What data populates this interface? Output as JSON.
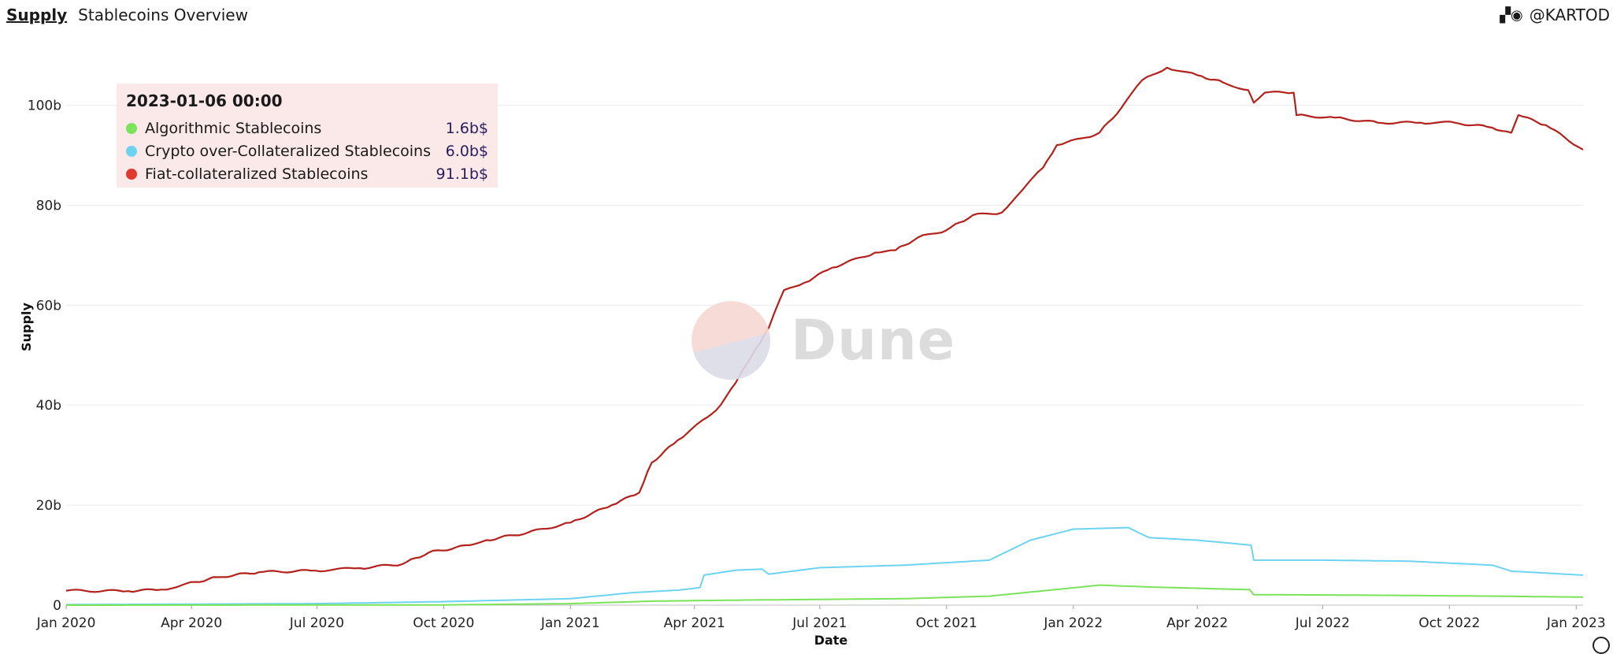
{
  "header": {
    "link_label": "Supply",
    "subtitle": "Stablecoins Overview"
  },
  "author": {
    "icon": "user-avatar-icon",
    "handle": "@KARTOD"
  },
  "watermark": {
    "text": "Dune"
  },
  "tooltip": {
    "date": "2023-01-06 00:00",
    "rows": [
      {
        "name": "Algorithmic Stablecoins",
        "value": "1.6b$",
        "color": "#7be35a"
      },
      {
        "name": "Crypto over-Collateralized Stablecoins",
        "value": "6.0b$",
        "color": "#6ed3f0"
      },
      {
        "name": "Fiat-collateralized Stablecoins",
        "value": "91.1b$",
        "color": "#e03a30"
      }
    ]
  },
  "chart_data": {
    "type": "line",
    "xlabel": "Date",
    "ylabel": "Supply",
    "x_tick_labels": [
      "Jan 2020",
      "Apr 2020",
      "Jul 2020",
      "Oct 2020",
      "Jan 2021",
      "Apr 2021",
      "Jul 2021",
      "Oct 2021",
      "Jan 2022",
      "Apr 2022",
      "Jul 2022",
      "Oct 2022",
      "Jan 2023"
    ],
    "y_ticks": [
      0,
      20,
      40,
      60,
      80,
      100
    ],
    "y_tick_labels": [
      "0",
      "20b",
      "40b",
      "60b",
      "80b",
      "100b"
    ],
    "ylim": [
      0,
      110
    ],
    "xlim": [
      "2020-01-01",
      "2023-01-06"
    ],
    "grid": true,
    "series": [
      {
        "name": "Fiat-collateralized Stablecoins",
        "color": "#b2211b",
        "points": [
          [
            "2020-01-01",
            2.9
          ],
          [
            "2020-02-15",
            2.8
          ],
          [
            "2020-03-10",
            3.1
          ],
          [
            "2020-03-25",
            4.0
          ],
          [
            "2020-04-20",
            5.6
          ],
          [
            "2020-05-20",
            6.6
          ],
          [
            "2020-06-30",
            6.9
          ],
          [
            "2020-08-01",
            7.4
          ],
          [
            "2020-09-01",
            8.2
          ],
          [
            "2020-09-20",
            10.5
          ],
          [
            "2020-10-20",
            12.0
          ],
          [
            "2020-11-01",
            13.0
          ],
          [
            "2020-12-01",
            14.5
          ],
          [
            "2021-01-01",
            16.5
          ],
          [
            "2021-01-31",
            20.0
          ],
          [
            "2021-02-20",
            22.5
          ],
          [
            "2021-03-01",
            28.5
          ],
          [
            "2021-03-20",
            33.0
          ],
          [
            "2021-04-10",
            37.5
          ],
          [
            "2021-04-20",
            40.0
          ],
          [
            "2021-05-01",
            44.5
          ],
          [
            "2021-05-15",
            51.0
          ],
          [
            "2021-05-25",
            55.5
          ],
          [
            "2021-06-05",
            63.0
          ],
          [
            "2021-06-20",
            64.5
          ],
          [
            "2021-07-10",
            67.5
          ],
          [
            "2021-08-10",
            70.5
          ],
          [
            "2021-08-25",
            71.0
          ],
          [
            "2021-09-10",
            73.5
          ],
          [
            "2021-10-01",
            75.0
          ],
          [
            "2021-10-20",
            78.0
          ],
          [
            "2021-11-10",
            78.5
          ],
          [
            "2021-11-25",
            83.0
          ],
          [
            "2021-12-10",
            87.5
          ],
          [
            "2021-12-20",
            92.0
          ],
          [
            "2022-01-10",
            93.5
          ],
          [
            "2022-01-20",
            94.5
          ],
          [
            "2022-02-05",
            99.5
          ],
          [
            "2022-02-20",
            105.0
          ],
          [
            "2022-03-10",
            107.5
          ],
          [
            "2022-04-01",
            106.0
          ],
          [
            "2022-04-20",
            104.5
          ],
          [
            "2022-05-08",
            103.0
          ],
          [
            "2022-05-12",
            100.5
          ],
          [
            "2022-05-20",
            102.5
          ],
          [
            "2022-06-10",
            102.5
          ],
          [
            "2022-06-12",
            98.0
          ],
          [
            "2022-07-10",
            97.5
          ],
          [
            "2022-08-10",
            96.5
          ],
          [
            "2022-09-10",
            96.5
          ],
          [
            "2022-10-05",
            96.5
          ],
          [
            "2022-11-01",
            95.5
          ],
          [
            "2022-11-15",
            94.5
          ],
          [
            "2022-11-20",
            98.0
          ],
          [
            "2022-12-10",
            96.0
          ],
          [
            "2023-01-06",
            91.1
          ]
        ]
      },
      {
        "name": "Crypto over-Collateralized Stablecoins",
        "color": "#6ed3f0",
        "points": [
          [
            "2020-01-01",
            0.1
          ],
          [
            "2020-07-01",
            0.3
          ],
          [
            "2020-10-01",
            0.7
          ],
          [
            "2021-01-01",
            1.3
          ],
          [
            "2021-02-15",
            2.5
          ],
          [
            "2021-03-20",
            3.0
          ],
          [
            "2021-04-05",
            3.5
          ],
          [
            "2021-04-08",
            6.0
          ],
          [
            "2021-05-01",
            7.0
          ],
          [
            "2021-05-20",
            7.2
          ],
          [
            "2021-05-25",
            6.2
          ],
          [
            "2021-07-01",
            7.5
          ],
          [
            "2021-09-01",
            8.0
          ],
          [
            "2021-11-01",
            9.0
          ],
          [
            "2021-12-01",
            13.0
          ],
          [
            "2022-01-01",
            15.2
          ],
          [
            "2022-02-10",
            15.5
          ],
          [
            "2022-02-25",
            13.5
          ],
          [
            "2022-04-01",
            13.0
          ],
          [
            "2022-05-10",
            12.0
          ],
          [
            "2022-05-12",
            9.0
          ],
          [
            "2022-07-01",
            9.0
          ],
          [
            "2022-09-01",
            8.8
          ],
          [
            "2022-11-01",
            8.0
          ],
          [
            "2022-11-15",
            6.8
          ],
          [
            "2023-01-06",
            6.0
          ]
        ]
      },
      {
        "name": "Algorithmic Stablecoins",
        "color": "#7be35a",
        "points": [
          [
            "2020-01-01",
            0.0
          ],
          [
            "2020-10-01",
            0.05
          ],
          [
            "2021-01-01",
            0.3
          ],
          [
            "2021-03-01",
            0.8
          ],
          [
            "2021-05-01",
            1.0
          ],
          [
            "2021-09-01",
            1.3
          ],
          [
            "2021-11-01",
            1.8
          ],
          [
            "2021-12-15",
            3.0
          ],
          [
            "2022-01-20",
            4.0
          ],
          [
            "2022-03-01",
            3.6
          ],
          [
            "2022-05-09",
            3.1
          ],
          [
            "2022-05-12",
            2.1
          ],
          [
            "2022-08-01",
            2.0
          ],
          [
            "2022-11-01",
            1.8
          ],
          [
            "2023-01-06",
            1.6
          ]
        ]
      }
    ]
  }
}
